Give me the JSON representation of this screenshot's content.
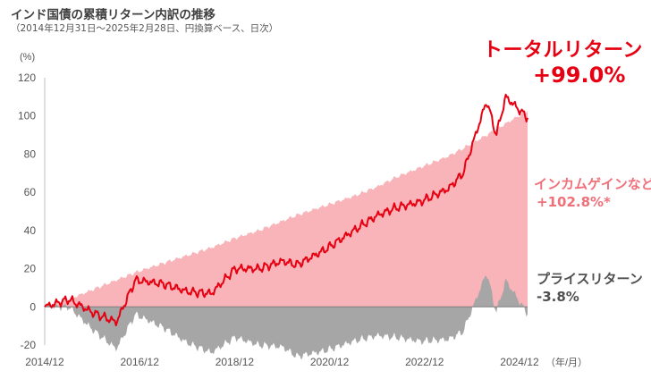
{
  "title": "インド国債の累積リターン内訳の推移",
  "subtitle": "（2014年12月31日～2025年2月28日、円換算ベース、日次）",
  "y_unit": "(%)",
  "x_unit": "（年/月）",
  "annotations": {
    "total_return_label": "トータルリターン",
    "total_return_value": "+99.0%",
    "income_gain_label": "インカムゲインなど",
    "income_gain_value": "+102.8%*",
    "price_return_label": "プライスリターン",
    "price_return_value": "-3.8%"
  },
  "colors": {
    "total_return": "#e60012",
    "income_gain": "#f8b4b8",
    "price_return": "#a6a6a6"
  },
  "chart_data": {
    "type": "area",
    "ylim": [
      -20,
      120
    ],
    "y_ticks": [
      "120",
      "100",
      "80",
      "60",
      "40",
      "20",
      "0",
      "-20"
    ],
    "x_tick_labels": [
      "2014/12",
      "2016/12",
      "2018/12",
      "2020/12",
      "2022/12",
      "2024/12"
    ],
    "x_years": [
      2014.99,
      2015.5,
      2016.0,
      2016.5,
      2016.9,
      2017.5,
      2018.0,
      2018.5,
      2019.0,
      2019.5,
      2020.0,
      2020.3,
      2020.9,
      2021.5,
      2022.0,
      2022.4,
      2022.9,
      2023.5,
      2023.8,
      2024.3,
      2024.5,
      2024.7,
      2025.16
    ],
    "series": [
      {
        "name": "トータルリターン",
        "values": [
          0,
          4,
          -3,
          -8,
          14,
          12,
          8,
          7,
          20,
          20,
          24,
          22,
          30,
          40,
          48,
          52,
          55,
          62,
          70,
          108,
          90,
          110,
          99
        ]
      },
      {
        "name": "インカムゲインなど",
        "values": [
          0,
          4,
          9,
          14,
          18,
          23,
          27,
          31,
          36,
          40,
          45,
          48,
          53,
          58,
          63,
          68,
          73,
          79,
          83,
          90,
          93,
          96,
          102.8
        ]
      },
      {
        "name": "プライスリターン",
        "values": [
          0,
          0,
          -12,
          -22,
          -4,
          -11,
          -19,
          -24,
          -16,
          -20,
          -21,
          -26,
          -23,
          -18,
          -15,
          -16,
          -18,
          -17,
          -13,
          18,
          -3,
          14,
          -3.8
        ]
      }
    ]
  }
}
